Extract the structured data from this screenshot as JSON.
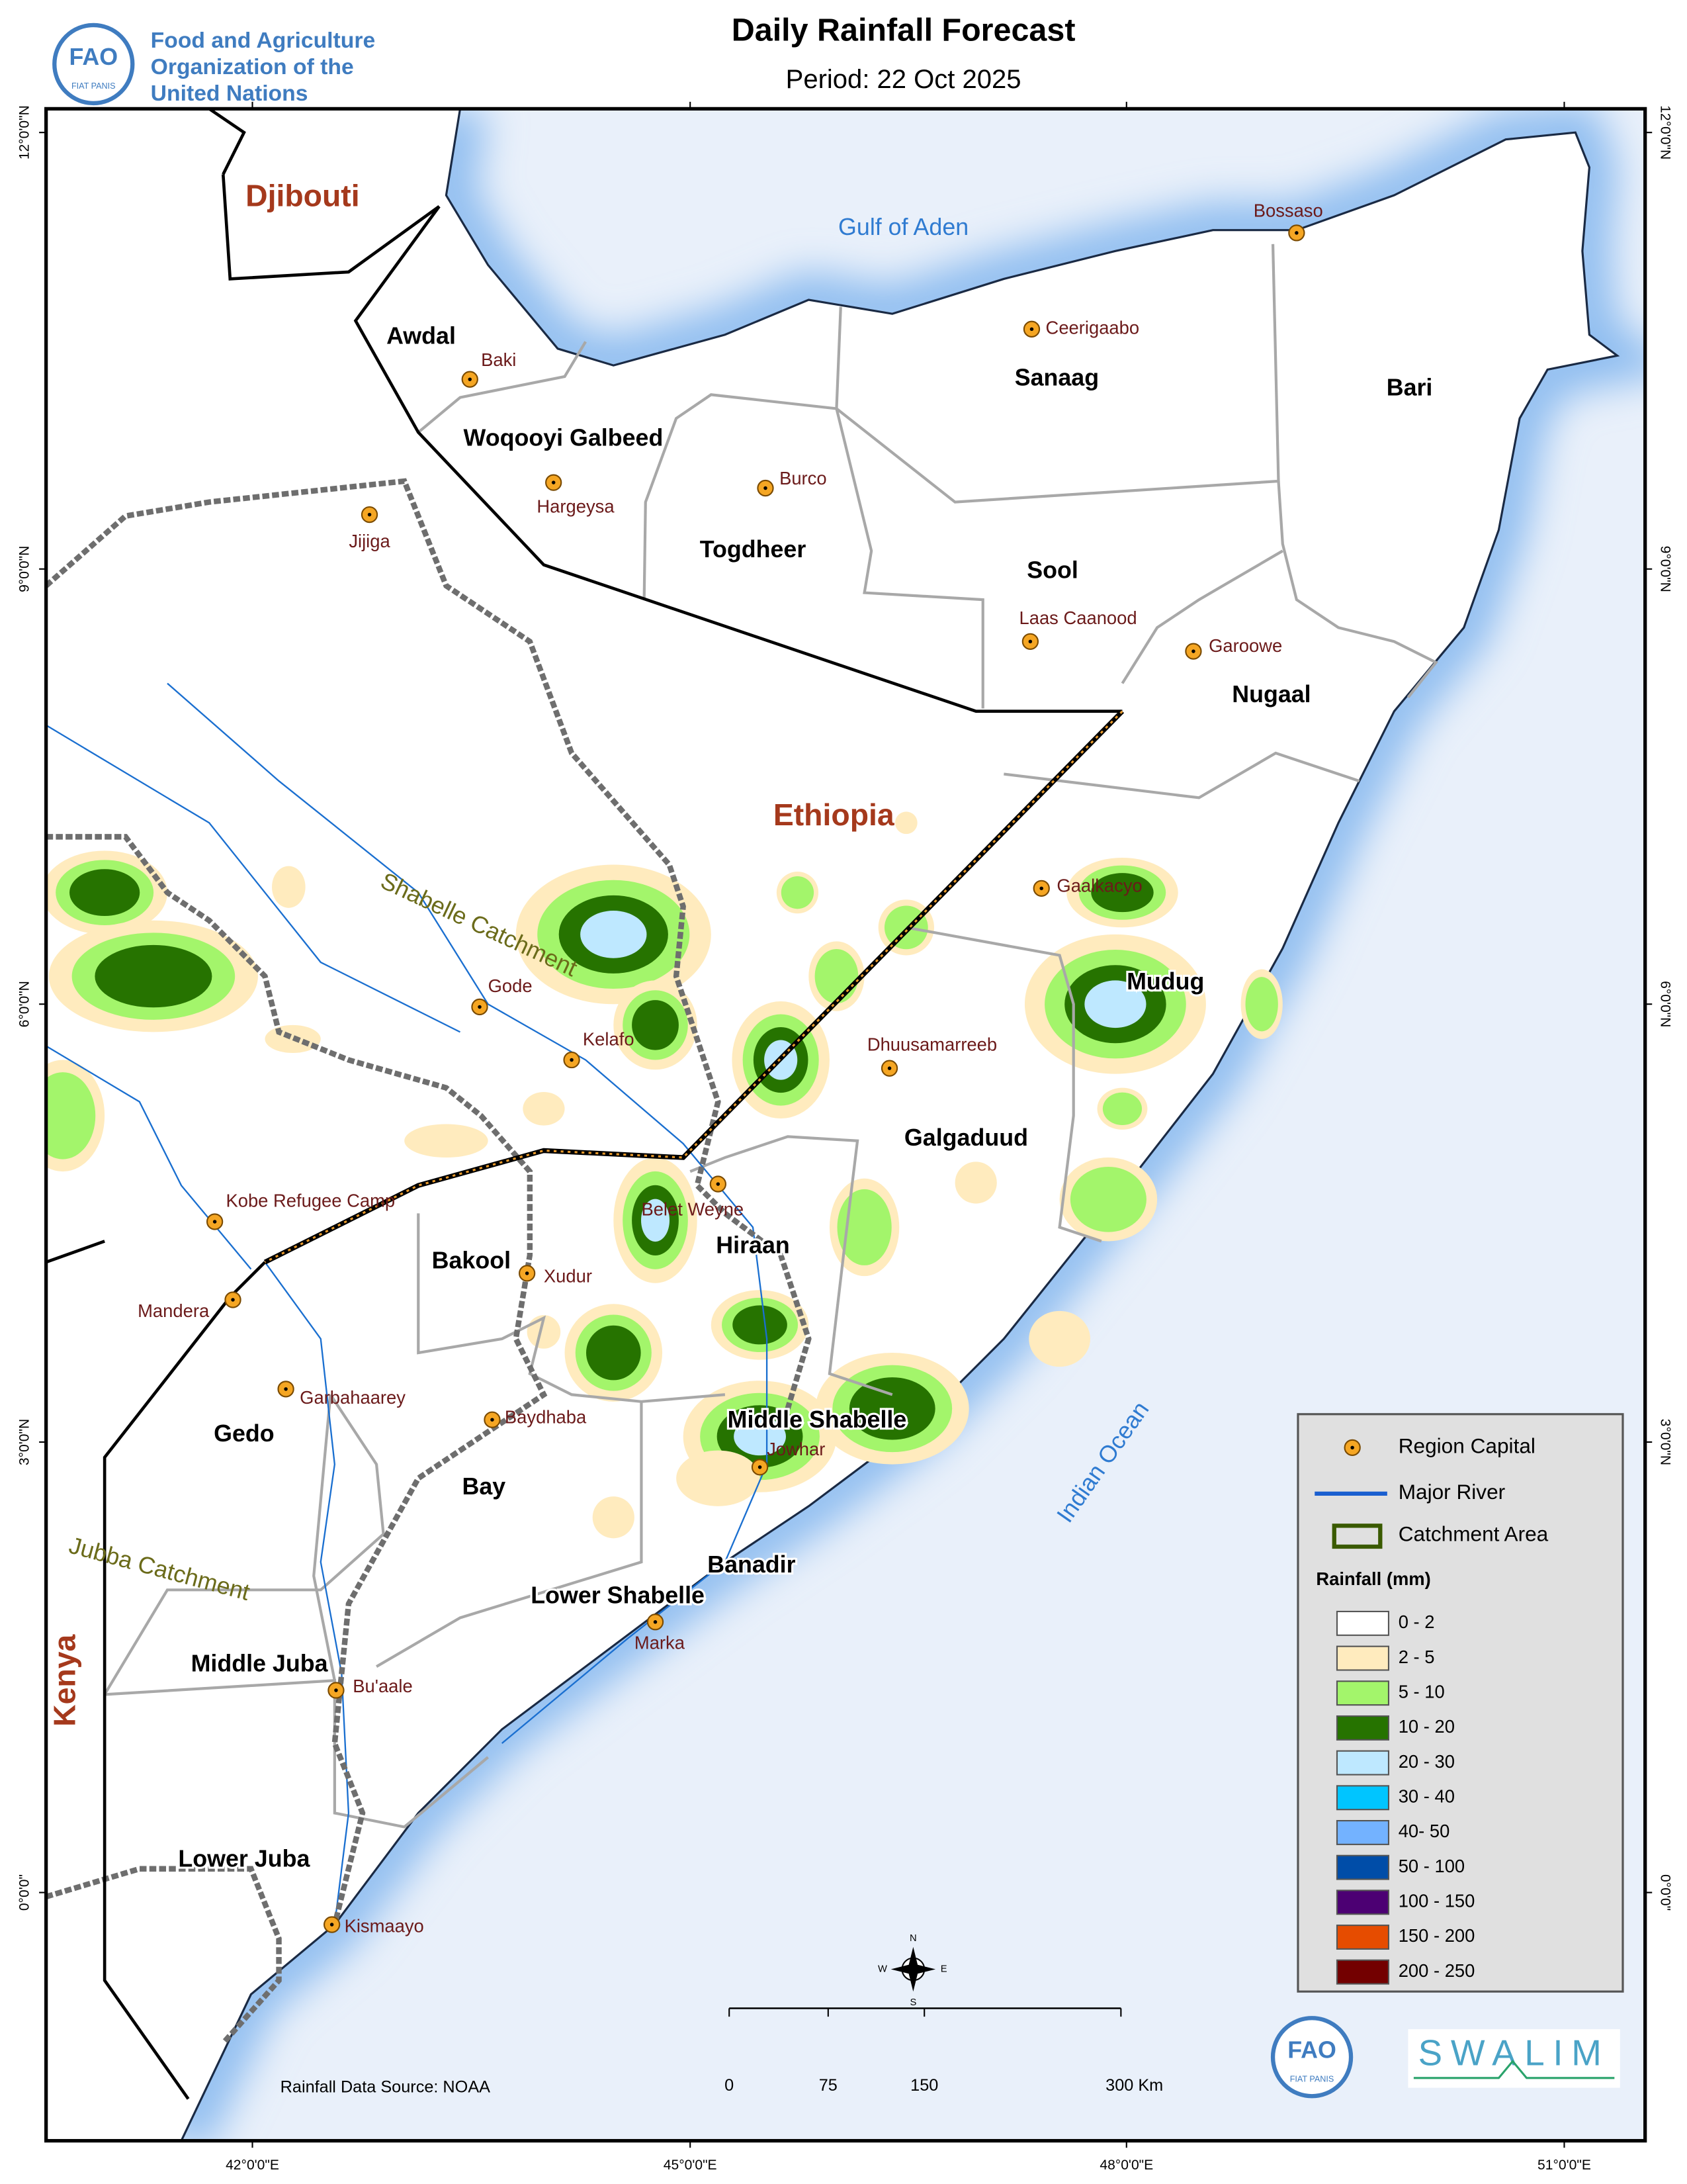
{
  "header": {
    "org_name": [
      "Food and Agriculture",
      "Organization of the",
      "United Nations"
    ],
    "title": "Daily Rainfall Forecast",
    "subtitle": "Period: 22 Oct 2025"
  },
  "map": {
    "countries": [
      "Djibouti",
      "Ethiopia",
      "Kenya"
    ],
    "water_bodies": [
      "Gulf of Aden",
      "Indian Ocean"
    ],
    "catchments": [
      "Shabelle Catchment",
      "Jubba Catchment"
    ],
    "regions": [
      "Awdal",
      "Woqooyi Galbeed",
      "Togdheer",
      "Sanaag",
      "Sool",
      "Bari",
      "Nugaal",
      "Mudug",
      "Galgaduud",
      "Hiraan",
      "Bakool",
      "Gedo",
      "Bay",
      "Middle Shabelle",
      "Banadir",
      "Lower Shabelle",
      "Middle Juba",
      "Lower Juba"
    ],
    "region_capitals": [
      "Bossaso",
      "Ceerigaabo",
      "Baki",
      "Hargeysa",
      "Burco",
      "Jijiga",
      "Laas Caanood",
      "Garoowe",
      "Gaalkacyo",
      "Gode",
      "Kelafo",
      "Dhuusamarreeb",
      "Belet Weyne",
      "Kobe Refugee Camp",
      "Xudur",
      "Mandera",
      "Garbahaarey",
      "Baydhaba",
      "Jowhar",
      "Marka",
      "Bu'aale",
      "Kismaayo"
    ]
  },
  "graticule": {
    "latitudes": [
      "12°0'0\"N",
      "9°0'0\"N",
      "6°0'0\"N",
      "3°0'0\"N",
      "0°0'0\""
    ],
    "longitudes": [
      "42°0'0\"E",
      "45°0'0\"E",
      "48°0'0\"E",
      "51°0'0\"E"
    ]
  },
  "legend": {
    "symbols": [
      "Region Capital",
      "Major River",
      "Catchment Area"
    ],
    "rainfall_title": "Rainfall (mm)",
    "classes": [
      {
        "label": "0 - 2",
        "color": "#ffffff"
      },
      {
        "label": "2 - 5",
        "color": "#ffebbe"
      },
      {
        "label": "5 - 10",
        "color": "#a3f56b"
      },
      {
        "label": "10 - 20",
        "color": "#267300"
      },
      {
        "label": "20 - 30",
        "color": "#bee8ff"
      },
      {
        "label": "30 - 40",
        "color": "#00c5ff"
      },
      {
        "label": "40- 50",
        "color": "#73b2ff"
      },
      {
        "label": "50 - 100",
        "color": "#004da8"
      },
      {
        "label": "100 - 150",
        "color": "#4c0073"
      },
      {
        "label": "150 - 200",
        "color": "#e64c00"
      },
      {
        "label": "200 - 250",
        "color": "#730000"
      }
    ]
  },
  "compass": [
    "N",
    "E",
    "S",
    "W"
  ],
  "scale_bar": [
    "0",
    "75",
    "150",
    "300 Km"
  ],
  "source": "Rainfall Data Source: NOAA",
  "logos": {
    "fao": "FAO",
    "fao_motto": "FIAT PANIS",
    "swalim": "SWALIM"
  }
}
